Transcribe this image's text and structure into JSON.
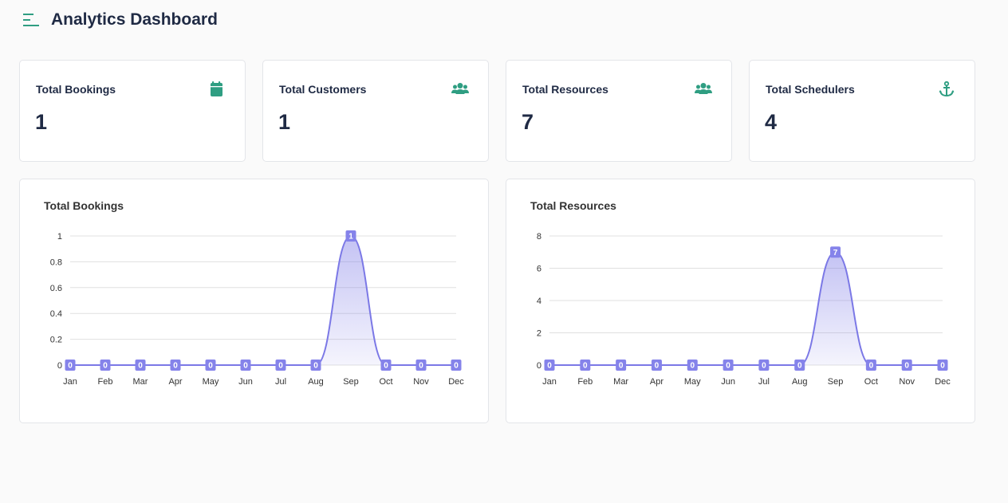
{
  "header": {
    "title": "Analytics Dashboard",
    "menu_icon": "hamburger-menu-icon"
  },
  "colors": {
    "accent": "#2f9e82",
    "text": "#1f2a44",
    "line": "#7b78e6",
    "label_bg": "#8583ea"
  },
  "stats": [
    {
      "label": "Total Bookings",
      "value": "1",
      "icon": "calendar-icon"
    },
    {
      "label": "Total Customers",
      "value": "1",
      "icon": "users-icon"
    },
    {
      "label": "Total Resources",
      "value": "7",
      "icon": "users-icon"
    },
    {
      "label": "Total Schedulers",
      "value": "4",
      "icon": "anchor-icon"
    }
  ],
  "chart_data": [
    {
      "type": "area",
      "title": "Total Bookings",
      "categories": [
        "Jan",
        "Feb",
        "Mar",
        "Apr",
        "May",
        "Jun",
        "Jul",
        "Aug",
        "Sep",
        "Oct",
        "Nov",
        "Dec"
      ],
      "values": [
        0,
        0,
        0,
        0,
        0,
        0,
        0,
        0,
        1,
        0,
        0,
        0
      ],
      "ylim": [
        0,
        1
      ],
      "yticks": [
        0,
        0.2,
        0.4,
        0.6,
        0.8,
        1
      ],
      "ytick_labels": [
        "0",
        "0.2",
        "0.4",
        "0.6",
        "0.8",
        "1"
      ],
      "grid": true,
      "data_labels": true,
      "legend": "none"
    },
    {
      "type": "area",
      "title": "Total Resources",
      "categories": [
        "Jan",
        "Feb",
        "Mar",
        "Apr",
        "May",
        "Jun",
        "Jul",
        "Aug",
        "Sep",
        "Oct",
        "Nov",
        "Dec"
      ],
      "values": [
        0,
        0,
        0,
        0,
        0,
        0,
        0,
        0,
        7,
        0,
        0,
        0
      ],
      "ylim": [
        0,
        8
      ],
      "yticks": [
        0,
        2,
        4,
        6,
        8
      ],
      "ytick_labels": [
        "0",
        "2",
        "4",
        "6",
        "8"
      ],
      "grid": true,
      "data_labels": true,
      "legend": "none"
    }
  ]
}
